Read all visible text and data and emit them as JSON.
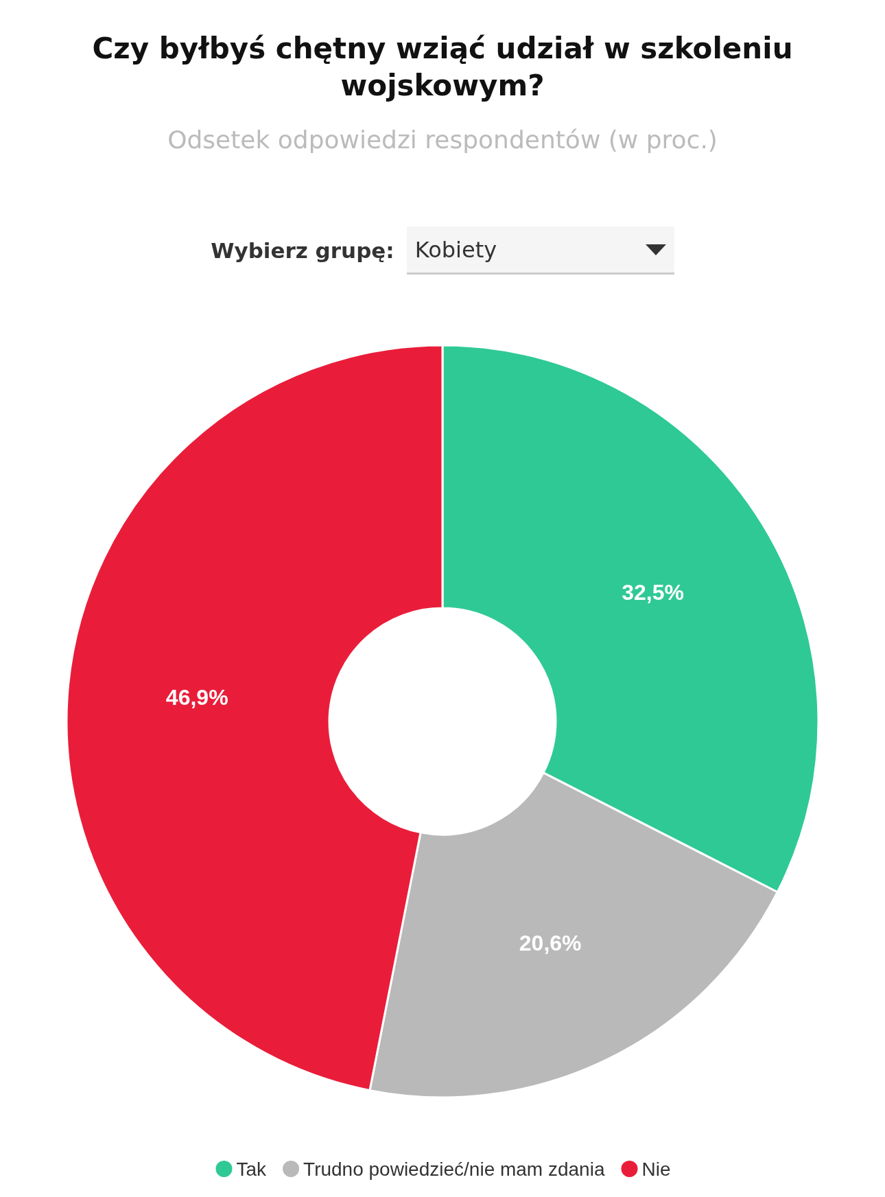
{
  "chart_data": {
    "type": "donut",
    "title": "Czy byłbyś chętny wziąć udział w szkoleniu\nwojskowym?",
    "subtitle": "Odsetek odpowiedzi respondentów (w proc.)",
    "annotations": [
      "Wybierz grupę:",
      "Kobiety"
    ],
    "categories": [
      "Tak",
      "Trudno powiedzieć/nie mam zdania",
      "Nie"
    ],
    "values": [
      32.5,
      20.6,
      46.9
    ],
    "colors": [
      "#2fc995",
      "#b9b9b9",
      "#e91d3a"
    ],
    "value_labels": [
      "32,5%",
      "20,6%",
      "46,9%"
    ],
    "legend": "bottom"
  }
}
